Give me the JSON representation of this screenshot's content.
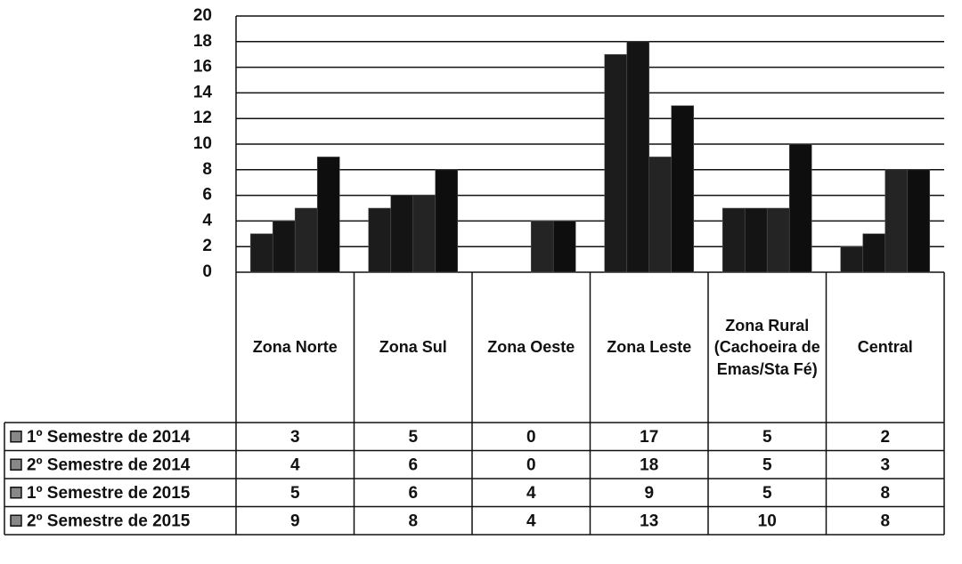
{
  "chart_data": {
    "type": "bar",
    "categories": [
      "Zona Norte",
      "Zona Sul",
      "Zona Oeste",
      "Zona Leste",
      "Zona Rural (Cachoeira de Emas/Sta Fé)",
      "Central"
    ],
    "series": [
      {
        "name": "1º Semestre de 2014",
        "color": "#1c1c1c",
        "values": [
          3,
          5,
          0,
          17,
          5,
          2
        ]
      },
      {
        "name": "2º Semestre de 2014",
        "color": "#141414",
        "values": [
          4,
          6,
          0,
          18,
          5,
          3
        ]
      },
      {
        "name": "1º Semestre de 2015",
        "color": "#242424",
        "values": [
          5,
          6,
          4,
          9,
          5,
          8
        ]
      },
      {
        "name": "2º Semestre de 2015",
        "color": "#0e0e0e",
        "values": [
          9,
          8,
          4,
          13,
          10,
          8
        ]
      }
    ],
    "ylim": [
      0,
      20
    ],
    "yticks": [
      0,
      2,
      4,
      6,
      8,
      10,
      12,
      14,
      16,
      18,
      20
    ],
    "grid": true
  }
}
